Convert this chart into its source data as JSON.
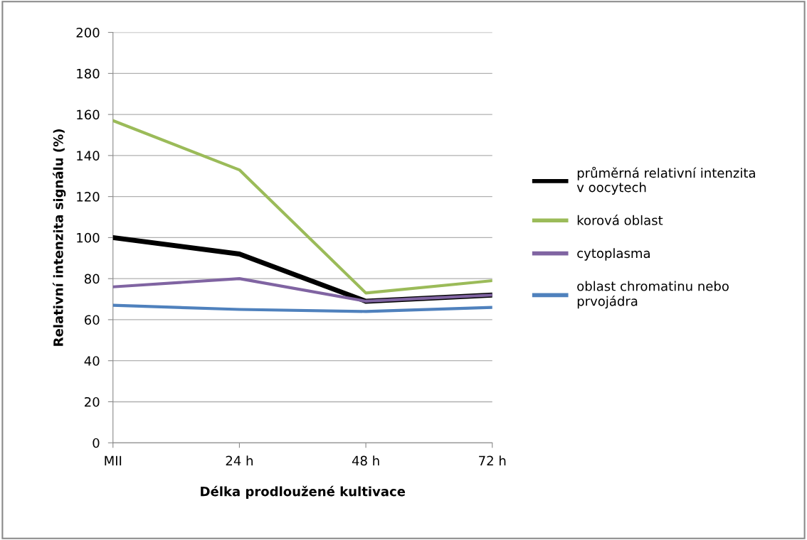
{
  "chart_data": {
    "type": "line",
    "xlabel": "Délka prodloužené kultivace",
    "ylabel": "Relativní intenzita signálu (%)",
    "categories": [
      "MII",
      "24 h",
      "48 h",
      "72 h"
    ],
    "series": [
      {
        "name": "průměrná relativní intenzita\nv oocytech",
        "color": "#000000",
        "values": [
          100,
          92,
          69,
          72
        ]
      },
      {
        "name": "korová oblast",
        "color": "#9bbb59",
        "values": [
          157,
          133,
          73,
          79
        ]
      },
      {
        "name": "cytoplasma",
        "color": "#8064a2",
        "values": [
          76,
          80,
          69,
          72
        ]
      },
      {
        "name": "oblast chromatinu nebo\nprvojádra",
        "color": "#4f81bd",
        "values": [
          67,
          65,
          64,
          66
        ]
      }
    ],
    "ylim": [
      0,
      200
    ],
    "yticks": [
      0,
      20,
      40,
      60,
      80,
      100,
      120,
      140,
      160,
      180,
      200
    ],
    "grid": "y",
    "legend": "right",
    "marker": "none",
    "line_style": "solid"
  }
}
